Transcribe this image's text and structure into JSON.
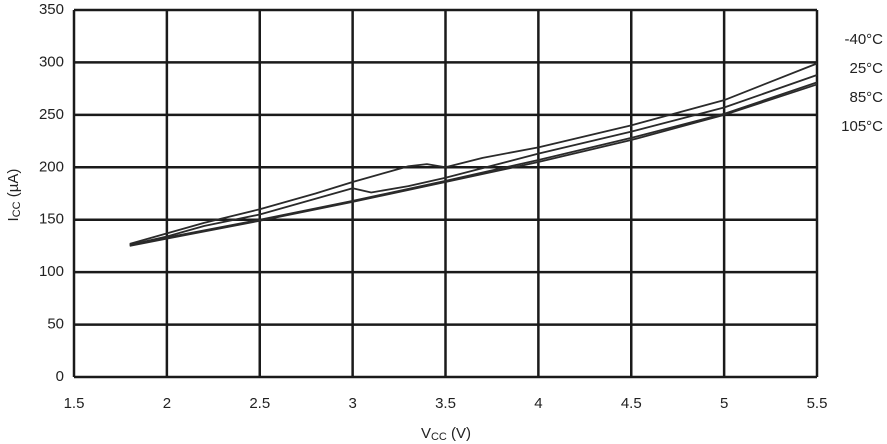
{
  "chart_data": {
    "type": "line",
    "xlabel": [
      "V",
      "CC",
      " (V)"
    ],
    "ylabel": [
      "I",
      "CC",
      " (µA)"
    ],
    "xlim": [
      1.5,
      5.5
    ],
    "xticks": [
      1.5,
      2,
      2.5,
      3,
      3.5,
      4,
      4.5,
      5,
      5.5
    ],
    "ylim": [
      0,
      350
    ],
    "yticks": [
      0,
      50,
      100,
      150,
      200,
      250,
      300,
      350
    ],
    "grid": true,
    "series": [
      {
        "name": "-40°C",
        "color": "#2a2a2a",
        "x": [
          1.8,
          2.0,
          2.2,
          2.5,
          2.8,
          3.0,
          3.2,
          3.3,
          3.4,
          3.5,
          3.7,
          4.0,
          4.5,
          5.0,
          5.5
        ],
        "values": [
          127,
          137,
          147,
          160,
          175,
          186,
          196,
          201,
          203,
          200,
          209,
          219,
          240,
          264,
          299
        ]
      },
      {
        "name": "25°C",
        "color": "#2a2a2a",
        "x": [
          1.8,
          2.0,
          2.2,
          2.5,
          2.8,
          3.0,
          3.1,
          3.3,
          3.5,
          4.0,
          4.5,
          5.0,
          5.5
        ],
        "values": [
          126,
          134,
          144,
          155,
          170,
          180,
          176,
          182,
          190,
          213,
          234,
          257,
          288
        ]
      },
      {
        "name": "85°C",
        "color": "#2a2a2a",
        "x": [
          1.8,
          2.0,
          2.5,
          3.0,
          3.5,
          4.0,
          4.5,
          5.0,
          5.5
        ],
        "values": [
          126,
          133,
          150,
          168,
          187,
          207,
          228,
          251,
          281
        ]
      },
      {
        "name": "105°C",
        "color": "#2a2a2a",
        "x": [
          1.8,
          2.0,
          2.5,
          3.0,
          3.5,
          4.0,
          4.5,
          5.0,
          5.5
        ],
        "values": [
          125,
          132,
          149,
          167,
          186,
          205,
          226,
          250,
          279
        ]
      }
    ]
  }
}
